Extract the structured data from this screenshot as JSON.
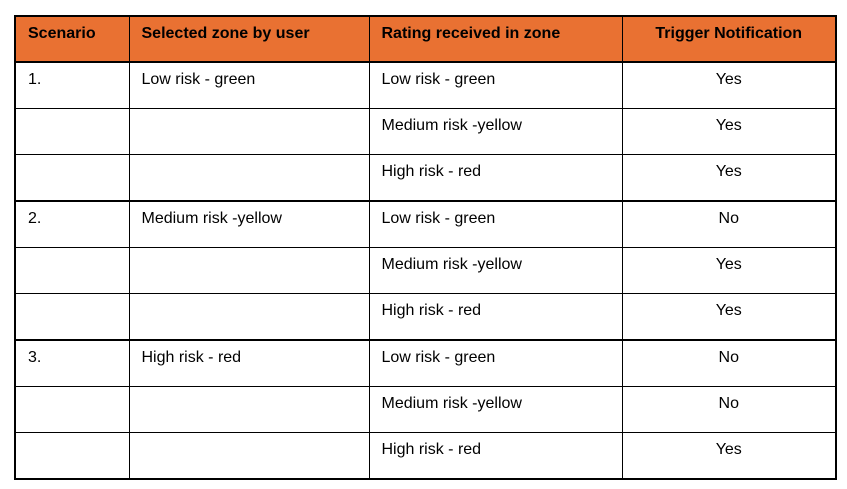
{
  "colors": {
    "header_bg": "#E97132",
    "border": "#000000",
    "text": "#000000",
    "page_bg": "#FFFFFF"
  },
  "table": {
    "headers": {
      "scenario": "Scenario",
      "selected_zone": "Selected zone by user",
      "rating": "Rating received in zone",
      "trigger": "Trigger Notification"
    },
    "groups": [
      {
        "scenario": "1.",
        "selected_zone": "Low risk - green",
        "rows": [
          {
            "rating": "Low risk - green",
            "trigger": "Yes"
          },
          {
            "rating": "Medium risk -yellow",
            "trigger": "Yes"
          },
          {
            "rating": "High risk - red",
            "trigger": "Yes"
          }
        ]
      },
      {
        "scenario": "2.",
        "selected_zone": "Medium risk -yellow",
        "rows": [
          {
            "rating": "Low risk - green",
            "trigger": "No"
          },
          {
            "rating": "Medium risk -yellow",
            "trigger": "Yes"
          },
          {
            "rating": "High risk - red",
            "trigger": "Yes"
          }
        ]
      },
      {
        "scenario": "3.",
        "selected_zone": "High risk - red",
        "rows": [
          {
            "rating": "Low risk - green",
            "trigger": "No"
          },
          {
            "rating": "Medium risk -yellow",
            "trigger": "No"
          },
          {
            "rating": "High risk - red",
            "trigger": "Yes"
          }
        ]
      }
    ]
  }
}
